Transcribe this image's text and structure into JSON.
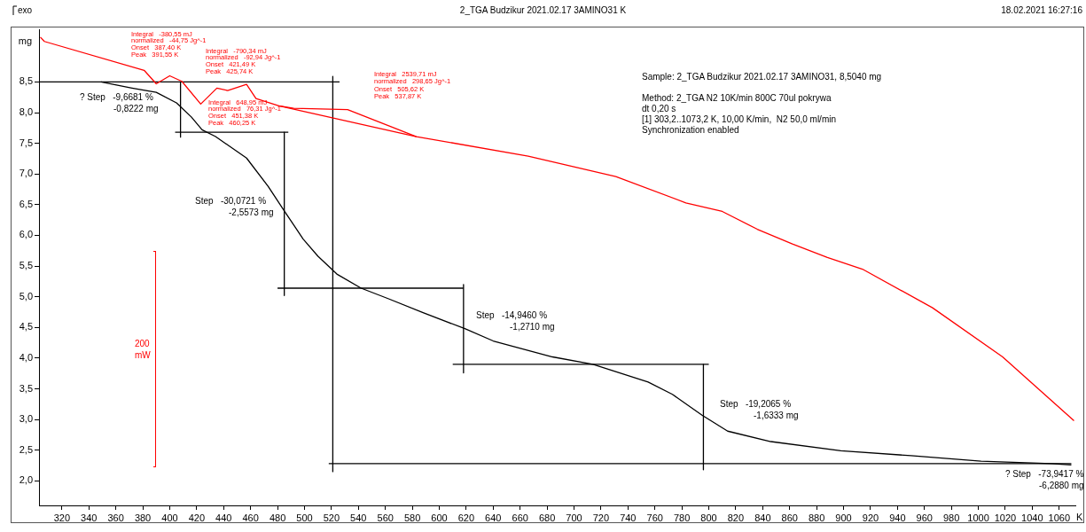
{
  "chart_data": {
    "type": "line",
    "title": "2_TGA Budzikur 2021.02.17 3AMINO31 K",
    "xlabel": "K",
    "ylabel": "mg",
    "xlim": [
      303,
      1072
    ],
    "ylim": [
      1.6,
      9.35
    ],
    "xticks": [
      320,
      340,
      360,
      380,
      400,
      420,
      440,
      460,
      480,
      500,
      520,
      540,
      560,
      580,
      600,
      620,
      640,
      660,
      680,
      700,
      720,
      740,
      760,
      780,
      800,
      820,
      840,
      860,
      880,
      900,
      920,
      940,
      960,
      980,
      1000,
      1020,
      1040,
      1060
    ],
    "yticks": [
      {
        "value": 2,
        "label": "2,0"
      },
      {
        "value": 2.5,
        "label": "2,5"
      },
      {
        "value": 3,
        "label": "3,0"
      },
      {
        "value": 3.5,
        "label": "3,5"
      },
      {
        "value": 4,
        "label": "4,0"
      },
      {
        "value": 4.5,
        "label": "4,5"
      },
      {
        "value": 5,
        "label": "5,0"
      },
      {
        "value": 5.5,
        "label": "5,5"
      },
      {
        "value": 6,
        "label": "6,0"
      },
      {
        "value": 6.5,
        "label": "6,5"
      },
      {
        "value": 7,
        "label": "7,0"
      },
      {
        "value": 7.5,
        "label": "7,5"
      },
      {
        "value": 8,
        "label": "8,0"
      },
      {
        "value": 8.5,
        "label": "8,5"
      }
    ],
    "grid": false,
    "legend": false,
    "marker": "none",
    "line_style": "solid",
    "series": [
      {
        "color": "#000000",
        "x": [
          349,
          372,
          390,
          405,
          416,
          424,
          434,
          457,
          473,
          485,
          499,
          510,
          524,
          542,
          562,
          588,
          619,
          640,
          684,
          714,
          755,
          773,
          795,
          814,
          846,
          898,
          950,
          1002,
          1054,
          1069
        ],
        "values": [
          8.5,
          8.4,
          8.33,
          8.16,
          7.93,
          7.72,
          7.61,
          7.26,
          6.8,
          6.4,
          5.94,
          5.66,
          5.37,
          5.14,
          4.97,
          4.74,
          4.48,
          4.28,
          4.02,
          3.9,
          3.61,
          3.41,
          3.07,
          2.81,
          2.64,
          2.49,
          2.41,
          2.32,
          2.28,
          2.26
        ]
      },
      {
        "color": "#ff0000",
        "x": [
          304,
          307,
          381,
          390,
          400,
          409,
          423,
          435,
          443,
          457,
          464,
          481,
          492,
          532,
          583,
          666,
          731,
          783,
          810,
          836,
          862,
          888,
          914,
          966,
          1018,
          1071
        ],
        "values": [
          9.23,
          9.16,
          8.69,
          8.47,
          8.6,
          8.51,
          8.14,
          8.4,
          8.36,
          8.46,
          8.23,
          8.11,
          8.07,
          8.05,
          7.61,
          7.29,
          6.96,
          6.53,
          6.39,
          6.1,
          5.86,
          5.64,
          5.45,
          4.82,
          4.02,
          2.98
        ]
      },
      {
        "color": "#ff0000",
        "x": [
          481,
          583
        ],
        "values": [
          8.11,
          7.61
        ]
      },
      {
        "color": "#000000",
        "x": [
          303,
          526
        ],
        "values": [
          8.5,
          8.5
        ]
      },
      {
        "color": "#000000",
        "x": [
          408,
          408
        ],
        "values": [
          8.5,
          7.6
        ]
      },
      {
        "color": "#000000",
        "x": [
          404,
          488
        ],
        "values": [
          7.68,
          7.68
        ]
      },
      {
        "color": "#000000",
        "x": [
          485,
          485
        ],
        "values": [
          7.68,
          5.02
        ]
      },
      {
        "color": "#000000",
        "x": [
          480,
          618
        ],
        "values": [
          5.14,
          5.14
        ]
      },
      {
        "color": "#000000",
        "x": [
          521,
          521
        ],
        "values": [
          8.59,
          2.15
        ]
      },
      {
        "color": "#000000",
        "x": [
          618,
          618
        ],
        "values": [
          5.2,
          3.76
        ]
      },
      {
        "color": "#000000",
        "x": [
          610,
          800
        ],
        "values": [
          3.9,
          3.9
        ]
      },
      {
        "color": "#000000",
        "x": [
          796,
          796
        ],
        "values": [
          3.9,
          2.18
        ]
      },
      {
        "color": "#000000",
        "x": [
          518,
          1069
        ],
        "values": [
          2.28,
          2.28
        ]
      }
    ],
    "annotations": [
      "exo",
      "18.02.2021 16:27:16",
      "Integral   -380,55 mJ\nnormalized   -44,75 Jg^-1\nOnset   387,40 K\nPeak   391,55 K",
      "Integral   -790,34 mJ\nnormalized   -92,94 Jg^-1\nOnset   421,49 K\nPeak   425,74 K",
      "Integral   648,95 mJ\nnormalized   76,31 Jg^-1\nOnset   451,38 K\nPeak   460,25 K",
      "Integral   2539,71 mJ\nnormalized   298,65 Jg^-1\nOnset   505,62 K\nPeak   537,87 K",
      "? Step   -9,6681 %\n-0,8222 mg",
      "Step   -30,0721 %\n-2,5573 mg",
      "Step   -14,9460 %\n-1,2710 mg",
      "Step   -19,2065 %\n-1,6333 mg",
      "? Step   -73,9417 %\n-6,2880 mg",
      "Sample: 2_TGA Budzikur 2021.02.17 3AMINO31, 8,5040 mg\n\nMethod: 2_TGA N2 10K/min 800C 70ul pokrywa\ndt 0,20 s\n[1] 303,2..1073,2 K, 10,00 K/min,  N2 50,0 ml/min\nSynchronization enabled",
      "200\nmW"
    ]
  }
}
